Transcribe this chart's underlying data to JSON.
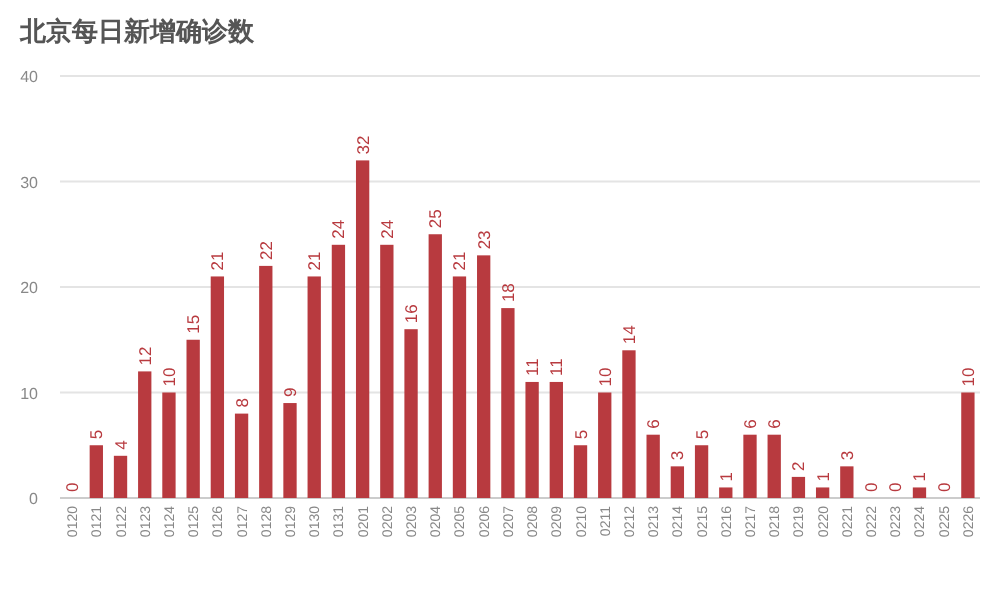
{
  "chart_data": {
    "type": "bar",
    "title": "北京每日新增确诊数",
    "categories": [
      "0120",
      "0121",
      "0122",
      "0123",
      "0124",
      "0125",
      "0126",
      "0127",
      "0128",
      "0129",
      "0130",
      "0131",
      "0201",
      "0202",
      "0203",
      "0204",
      "0205",
      "0206",
      "0207",
      "0208",
      "0209",
      "0210",
      "0211",
      "0212",
      "0213",
      "0214",
      "0215",
      "0216",
      "0217",
      "0218",
      "0219",
      "0220",
      "0221",
      "0222",
      "0223",
      "0224",
      "0225",
      "0226"
    ],
    "values": [
      0,
      5,
      4,
      12,
      10,
      15,
      21,
      8,
      22,
      9,
      21,
      24,
      32,
      24,
      16,
      25,
      21,
      23,
      18,
      11,
      11,
      5,
      10,
      14,
      6,
      3,
      5,
      1,
      6,
      6,
      2,
      1,
      3,
      0,
      0,
      1,
      0,
      10
    ],
    "color": "#b83a3f",
    "ylim": [
      0,
      40
    ],
    "yticks": [
      0,
      10,
      20,
      30,
      40
    ],
    "grid": "y",
    "data_labels": true
  }
}
